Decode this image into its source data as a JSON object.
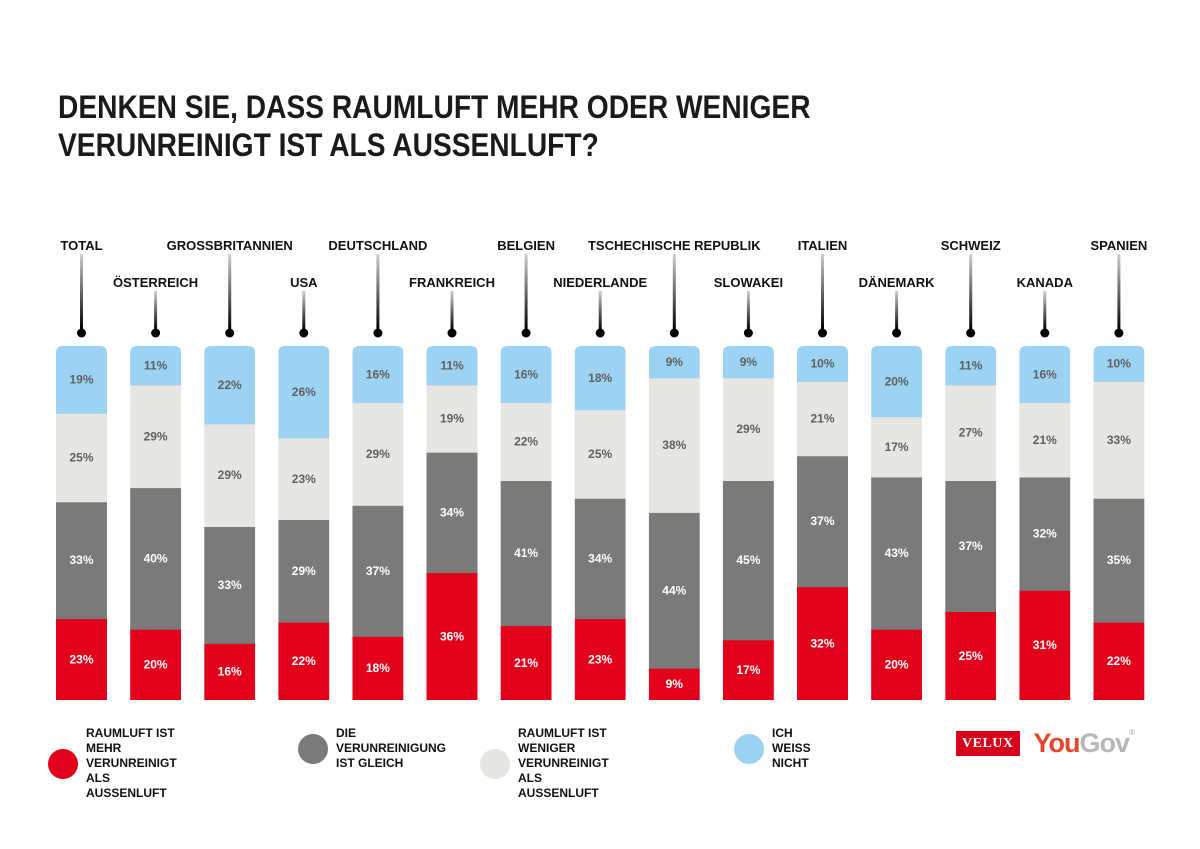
{
  "title_lines": [
    "DENKEN SIE, DASS RAUMLUFT MEHR ODER WENIGER",
    "VERUNREINIGT IST ALS AUSSENLUFT?"
  ],
  "chart_data": {
    "type": "bar",
    "stacked": true,
    "orientation": "vertical",
    "title": "DENKEN SIE, DASS RAUMLUFT MEHR ODER WENIGER VERUNREINIGT IST ALS AUSSENLUFT?",
    "xlabel": "",
    "ylabel": "",
    "ylim": [
      0,
      100
    ],
    "unit": "%",
    "grid": false,
    "legend_position": "bottom",
    "categories": [
      "TOTAL",
      "ÖSTERREICH",
      "GROSSBRITANNIEN",
      "USA",
      "DEUTSCHLAND",
      "FRANKREICH",
      "BELGIEN",
      "NIEDERLANDE",
      "TSCHECHISCHE REPUBLIK",
      "SLOWAKEI",
      "ITALIEN",
      "DÄNEMARK",
      "SCHWEIZ",
      "KANADA",
      "SPANIEN"
    ],
    "series": [
      {
        "name": "RAUMLUFT IST MEHR VERUNREINIGT ALS AUSSENLUFT",
        "color": "#e2001a",
        "label_color": "#ffffff",
        "values": [
          23,
          20,
          16,
          22,
          18,
          36,
          21,
          23,
          9,
          17,
          32,
          20,
          25,
          31,
          22
        ]
      },
      {
        "name": "DIE VERUNREINIGUNG IST GLEICH",
        "color": "#7a7a79",
        "label_color": "#ffffff",
        "values": [
          33,
          40,
          33,
          29,
          37,
          34,
          41,
          34,
          44,
          45,
          37,
          43,
          37,
          32,
          35
        ]
      },
      {
        "name": "RAUMLUFT IST WENIGER VERUNREINIGT ALS AUSSENLUFT",
        "color": "#e8e6e3",
        "label_color": "#5f5f5f",
        "values": [
          25,
          29,
          29,
          23,
          29,
          19,
          22,
          25,
          38,
          29,
          21,
          17,
          27,
          21,
          33
        ]
      },
      {
        "name": "ICH WEISS NICHT",
        "color": "#9dd3f2",
        "label_color": "#5f5f5f",
        "values": [
          19,
          11,
          22,
          26,
          16,
          11,
          16,
          18,
          9,
          9,
          10,
          20,
          11,
          16,
          10
        ]
      }
    ]
  },
  "legend": [
    {
      "label": "RAUMLUFT IST MEHR\nVERUNREINIGT ALS AUSSENLUFT",
      "color": "#e2001a"
    },
    {
      "label": "DIE VERUNREINIGUNG\nIST GLEICH",
      "color": "#7a7a79"
    },
    {
      "label": "RAUMLUFT IST WENIGER\nVERUNREINIGT ALS AUSSENLUFT",
      "color": "#e8e6e3"
    },
    {
      "label": "ICH WEISS NICHT",
      "color": "#9dd3f2"
    }
  ],
  "logos": {
    "velux": "VELUX",
    "yougov_you": "You",
    "yougov_gov": "Gov",
    "registered": "®"
  }
}
